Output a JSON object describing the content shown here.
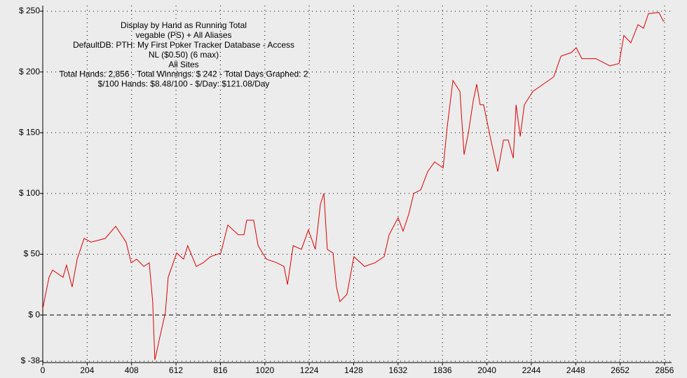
{
  "chart_data": {
    "type": "line",
    "annotations": [
      "Display by Hand as Running Total",
      "vegable (PS) + All Aliases",
      "DefaultDB: PTH: My First Poker Tracker Database - Access",
      "NL ($0.50) (6 max)",
      "All Sites",
      "Total Hands: 2,856 - Total Winnings: $ 242 - Total Days Graphed: 2",
      "$/100 Hands: $8.48/100 - $/Day: $121.08/Day"
    ],
    "x": [
      0,
      13,
      29,
      45,
      93,
      109,
      135,
      158,
      190,
      222,
      287,
      335,
      383,
      406,
      431,
      464,
      489,
      505,
      515,
      538,
      563,
      576,
      615,
      647,
      666,
      705,
      737,
      770,
      818,
      850,
      898,
      924,
      937,
      969,
      989,
      1027,
      1075,
      1108,
      1124,
      1150,
      1188,
      1220,
      1252,
      1275,
      1291,
      1307,
      1333,
      1349,
      1365,
      1397,
      1429,
      1478,
      1526,
      1568,
      1591,
      1632,
      1655,
      1681,
      1704,
      1736,
      1768,
      1800,
      1839,
      1858,
      1884,
      1916,
      1935,
      1955,
      1977,
      1993,
      2009,
      2025,
      2058,
      2090,
      2116,
      2138,
      2161,
      2174,
      2193,
      2212,
      2251,
      2299,
      2347,
      2380,
      2428,
      2450,
      2476,
      2540,
      2605,
      2647,
      2669,
      2701,
      2734,
      2759,
      2782,
      2830,
      2850,
      2856
    ],
    "values": [
      5,
      17,
      31,
      37,
      31,
      41,
      23,
      46,
      63,
      60,
      63,
      73,
      60,
      43,
      46,
      40,
      43,
      11,
      -37,
      -18,
      2,
      31,
      51,
      46,
      57,
      40,
      43,
      48,
      51,
      74,
      66,
      66,
      78,
      78,
      57,
      46,
      43,
      40,
      25,
      57,
      54,
      70,
      54,
      91,
      100,
      54,
      51,
      23,
      11,
      17,
      48,
      40,
      43,
      48,
      66,
      80,
      69,
      83,
      100,
      103,
      118,
      126,
      121,
      155,
      193,
      184,
      132,
      150,
      176,
      190,
      173,
      173,
      144,
      118,
      144,
      144,
      129,
      173,
      147,
      173,
      184,
      190,
      196,
      213,
      216,
      220,
      211,
      211,
      205,
      207,
      230,
      224,
      239,
      236,
      248,
      249,
      242,
      242
    ],
    "color": "#dd0000",
    "xlim": [
      0,
      2856
    ],
    "xticks": [
      0,
      204,
      408,
      612,
      816,
      1020,
      1224,
      1428,
      1632,
      1836,
      2040,
      2244,
      2448,
      2652,
      2856
    ],
    "ylim": [
      -38,
      250
    ],
    "yticks": [
      {
        "value": 250,
        "label": "$ 250"
      },
      {
        "value": 200,
        "label": "$ 200"
      },
      {
        "value": 150,
        "label": "$ 150"
      },
      {
        "value": 100,
        "label": "$ 100"
      },
      {
        "value": 50,
        "label": "$ 50"
      },
      {
        "value": 0,
        "label": "$ 0"
      },
      {
        "value": -38,
        "label": "$ -38"
      }
    ],
    "grid": true
  }
}
